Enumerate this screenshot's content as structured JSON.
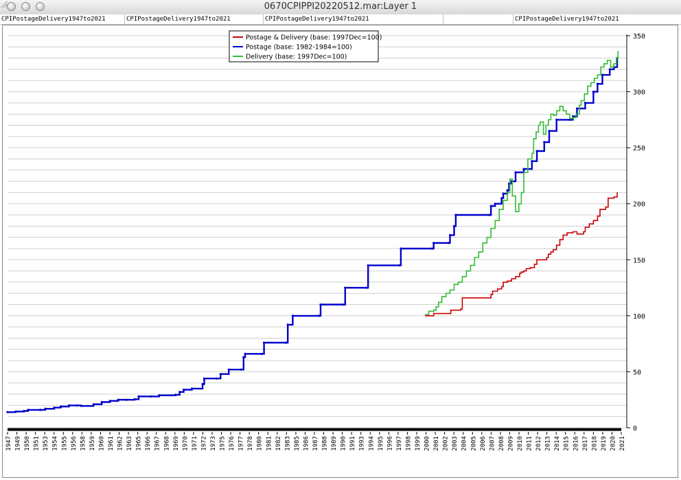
{
  "window": {
    "title": "0670CPIPPI20220512.mar:Layer 1"
  },
  "tabs": [
    {
      "label": "CPIPostageDelivery1947to2021"
    },
    {
      "label": "CPIPostageDelivery1947to2021"
    },
    {
      "label": "CPIPostageDelivery1947to2021"
    },
    {
      "label": ""
    },
    {
      "label": "CPIPostageDelivery1947to2021"
    }
  ],
  "chart_data": {
    "type": "line",
    "title": "",
    "xlabel": "",
    "ylabel": "",
    "xlim": [
      1947,
      2021.9
    ],
    "ylim": [
      0,
      350
    ],
    "yticks": [
      0,
      50,
      100,
      150,
      200,
      250,
      300,
      350
    ],
    "ytick_labels": [
      "0",
      "50",
      "100",
      "150",
      "200",
      "250",
      "300",
      "350"
    ],
    "xtick_labels": [
      "1947",
      "1949",
      "1950",
      "1951",
      "1953",
      "1954",
      "1955",
      "1956",
      "1958",
      "1959",
      "1960",
      "1961",
      "1962",
      "1963",
      "1965",
      "1966",
      "1967",
      "1968",
      "1969",
      "1970",
      "1971",
      "1972",
      "1973",
      "1975",
      "1976",
      "1977",
      "1978",
      "1980",
      "1981",
      "1982",
      "1983",
      "1985",
      "1986",
      "1987",
      "1988",
      "1989",
      "1990",
      "1991",
      "1993",
      "1994",
      "1995",
      "1996",
      "1997",
      "1998",
      "1999",
      "2000",
      "2001",
      "2002",
      "2003",
      "2004",
      "2005",
      "2006",
      "2007",
      "2008",
      "2009",
      "2010",
      "2011",
      "2012",
      "2013",
      "2014",
      "2015",
      "2016",
      "2017",
      "2018",
      "2019",
      "2020",
      "2021"
    ],
    "grid": true,
    "legend_position": "top-center",
    "series": [
      {
        "name": "Postage & Delivery (base: 1997Dec=100)",
        "color": "#cc0000",
        "points": [
          [
            1998.0,
            100
          ],
          [
            1998.5,
            100
          ],
          [
            1999.0,
            102
          ],
          [
            2001.0,
            102
          ],
          [
            2001.1,
            105
          ],
          [
            2002.3,
            106
          ],
          [
            2002.5,
            116
          ],
          [
            2006.0,
            119
          ],
          [
            2006.2,
            122
          ],
          [
            2006.8,
            124
          ],
          [
            2007.3,
            126
          ],
          [
            2007.5,
            130
          ],
          [
            2008.0,
            131
          ],
          [
            2008.5,
            133
          ],
          [
            2009.0,
            135
          ],
          [
            2009.5,
            138
          ],
          [
            2009.7,
            139
          ],
          [
            2010.0,
            140
          ],
          [
            2010.3,
            142
          ],
          [
            2010.8,
            143
          ],
          [
            2011.3,
            146
          ],
          [
            2011.6,
            150
          ],
          [
            2012.5,
            150
          ],
          [
            2012.8,
            152
          ],
          [
            2013.0,
            155
          ],
          [
            2013.3,
            157
          ],
          [
            2013.6,
            159
          ],
          [
            2014.0,
            163
          ],
          [
            2014.4,
            168
          ],
          [
            2014.8,
            172
          ],
          [
            2015.3,
            174
          ],
          [
            2016.0,
            175
          ],
          [
            2016.5,
            173
          ],
          [
            2017.3,
            175
          ],
          [
            2017.5,
            179
          ],
          [
            2018.0,
            182
          ],
          [
            2018.5,
            185
          ],
          [
            2019.0,
            189
          ],
          [
            2019.3,
            195
          ],
          [
            2020.0,
            197
          ],
          [
            2020.3,
            205
          ],
          [
            2021.0,
            206
          ],
          [
            2021.4,
            210
          ]
        ]
      },
      {
        "name": "Postage (base: 1982-1984=100)",
        "color": "#0000cc",
        "points": [
          [
            1947.0,
            14
          ],
          [
            1948.0,
            14.5
          ],
          [
            1949.0,
            15
          ],
          [
            1949.5,
            16
          ],
          [
            1951.0,
            16
          ],
          [
            1951.6,
            17
          ],
          [
            1952.7,
            18
          ],
          [
            1953.5,
            19
          ],
          [
            1954.5,
            20
          ],
          [
            1955.5,
            20
          ],
          [
            1956.0,
            19.5
          ],
          [
            1957.5,
            21
          ],
          [
            1958.5,
            23
          ],
          [
            1959.5,
            24
          ],
          [
            1960.5,
            25
          ],
          [
            1961.5,
            25
          ],
          [
            1962.5,
            25.5
          ],
          [
            1963.0,
            28
          ],
          [
            1964.5,
            28
          ],
          [
            1965.5,
            29
          ],
          [
            1967.5,
            29.5
          ],
          [
            1968.0,
            32
          ],
          [
            1968.5,
            34
          ],
          [
            1969.5,
            35
          ],
          [
            1970.8,
            39
          ],
          [
            1971.0,
            44
          ],
          [
            1972.5,
            44
          ],
          [
            1973.0,
            48
          ],
          [
            1974.0,
            52
          ],
          [
            1975.5,
            52
          ],
          [
            1975.8,
            63
          ],
          [
            1976.0,
            66
          ],
          [
            1978.0,
            66
          ],
          [
            1978.3,
            76
          ],
          [
            1981.0,
            76
          ],
          [
            1981.2,
            92
          ],
          [
            1981.8,
            100
          ],
          [
            1985.0,
            100
          ],
          [
            1985.2,
            110
          ],
          [
            1988.0,
            110
          ],
          [
            1988.2,
            125
          ],
          [
            1990.8,
            125
          ],
          [
            1991.0,
            145
          ],
          [
            1994.8,
            145
          ],
          [
            1995.0,
            160
          ],
          [
            1998.8,
            160
          ],
          [
            1999.0,
            165
          ],
          [
            2000.8,
            165
          ],
          [
            2001.0,
            172
          ],
          [
            2001.5,
            180
          ],
          [
            2001.7,
            190
          ],
          [
            2005.8,
            190
          ],
          [
            2006.0,
            198
          ],
          [
            2006.5,
            200
          ],
          [
            2007.3,
            205
          ],
          [
            2007.5,
            209
          ],
          [
            2008.0,
            212
          ],
          [
            2008.2,
            218
          ],
          [
            2008.5,
            220
          ],
          [
            2009.0,
            228
          ],
          [
            2010.0,
            231
          ],
          [
            2011.0,
            238
          ],
          [
            2011.6,
            247
          ],
          [
            2012.5,
            255
          ],
          [
            2013.1,
            265
          ],
          [
            2014.0,
            275
          ],
          [
            2015.6,
            275
          ],
          [
            2016.0,
            278
          ],
          [
            2016.5,
            285
          ],
          [
            2017.5,
            290
          ],
          [
            2018.5,
            300
          ],
          [
            2019.0,
            307
          ],
          [
            2019.6,
            315
          ],
          [
            2020.5,
            320
          ],
          [
            2021.0,
            322
          ],
          [
            2021.4,
            330
          ]
        ]
      },
      {
        "name": "Delivery (base: 1997Dec=100)",
        "color": "#33bb33",
        "points": [
          [
            1998.0,
            101
          ],
          [
            1998.4,
            104
          ],
          [
            1999.0,
            105
          ],
          [
            1999.3,
            108
          ],
          [
            1999.6,
            112
          ],
          [
            2000.0,
            117
          ],
          [
            2000.5,
            120
          ],
          [
            2001.0,
            123
          ],
          [
            2001.5,
            128
          ],
          [
            2002.0,
            130
          ],
          [
            2002.5,
            135
          ],
          [
            2003.0,
            140
          ],
          [
            2003.5,
            145
          ],
          [
            2004.0,
            152
          ],
          [
            2004.5,
            157
          ],
          [
            2005.0,
            165
          ],
          [
            2005.5,
            170
          ],
          [
            2006.0,
            178
          ],
          [
            2006.5,
            185
          ],
          [
            2007.0,
            195
          ],
          [
            2007.5,
            203
          ],
          [
            2008.0,
            210
          ],
          [
            2008.3,
            222
          ],
          [
            2008.6,
            207
          ],
          [
            2009.0,
            193
          ],
          [
            2009.4,
            200
          ],
          [
            2009.7,
            210
          ],
          [
            2010.0,
            228
          ],
          [
            2010.5,
            240
          ],
          [
            2011.0,
            245
          ],
          [
            2011.2,
            258
          ],
          [
            2011.5,
            264
          ],
          [
            2011.8,
            270
          ],
          [
            2012.0,
            273
          ],
          [
            2012.4,
            262
          ],
          [
            2012.7,
            270
          ],
          [
            2013.0,
            275
          ],
          [
            2013.3,
            280
          ],
          [
            2013.6,
            279
          ],
          [
            2014.0,
            283
          ],
          [
            2014.4,
            287
          ],
          [
            2014.8,
            283
          ],
          [
            2015.2,
            280
          ],
          [
            2015.6,
            276
          ],
          [
            2016.0,
            277
          ],
          [
            2016.4,
            280
          ],
          [
            2016.8,
            288
          ],
          [
            2017.0,
            292
          ],
          [
            2017.4,
            298
          ],
          [
            2017.8,
            305
          ],
          [
            2018.2,
            308
          ],
          [
            2018.6,
            312
          ],
          [
            2019.0,
            315
          ],
          [
            2019.4,
            322
          ],
          [
            2019.8,
            325
          ],
          [
            2020.2,
            328
          ],
          [
            2020.6,
            322
          ],
          [
            2021.0,
            325
          ],
          [
            2021.3,
            330
          ],
          [
            2021.5,
            336
          ]
        ]
      }
    ]
  }
}
